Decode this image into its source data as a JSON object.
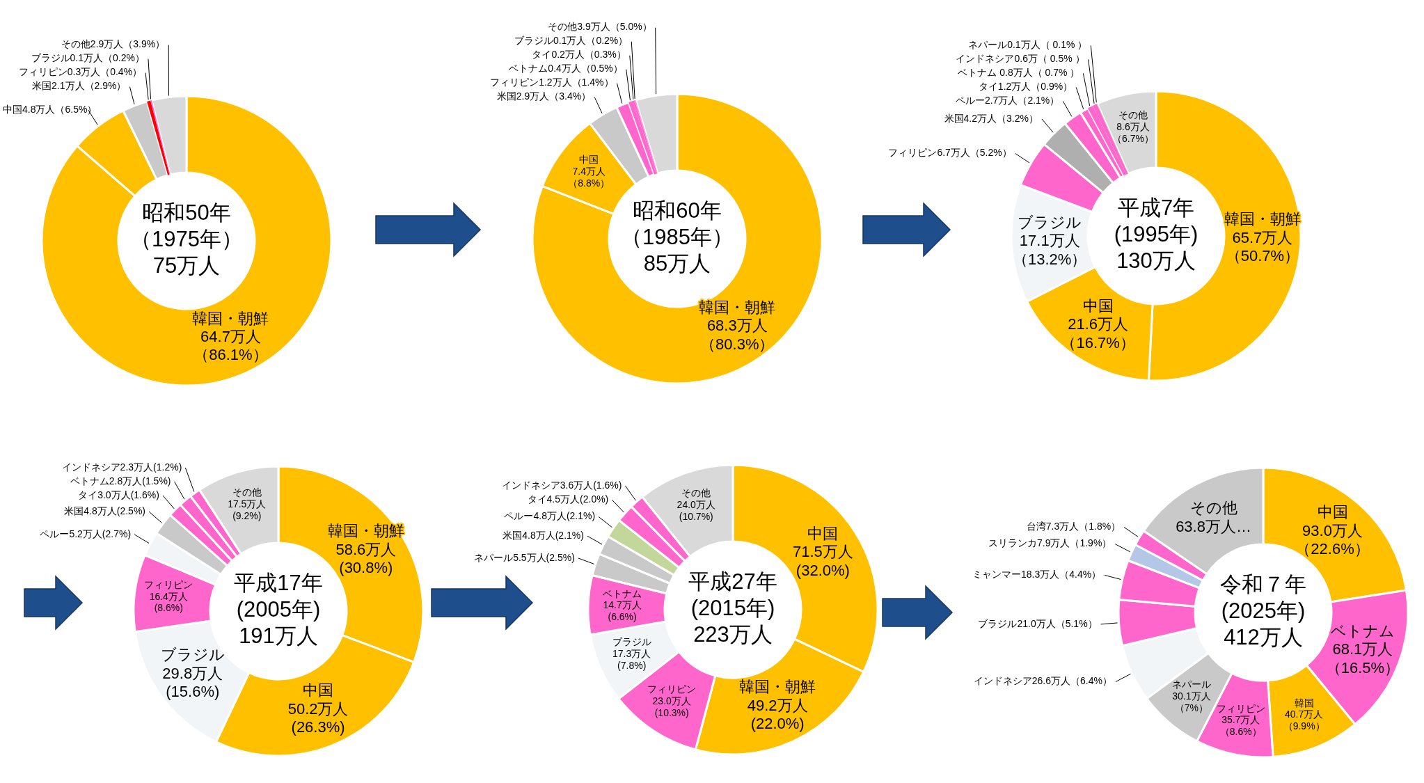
{
  "chart_data": [
    {
      "type": "donut",
      "title": "昭和50年",
      "subtitle": "（1975年）",
      "annotations": [
        "75万人"
      ],
      "categories": [
        "韓国・朝鮮",
        "中国",
        "米国",
        "フィリピン",
        "ブラジル",
        "その他"
      ],
      "values": [
        64.7,
        4.8,
        2.1,
        0.3,
        0.1,
        2.9
      ],
      "colors": [
        "#ffc000",
        "#ffc000",
        "#c9c9c9",
        "#ff0000",
        "#ff66cc",
        "#d9d9d9"
      ],
      "value_labels": [
        "64.7万人（86.1%）",
        "4.8万人（6.5%）",
        "2.1万人（2.9%）",
        "0.3万人（0.4%）",
        "0.1万人（0.2%）",
        "2.9万人（3.9%）"
      ]
    },
    {
      "type": "donut",
      "title": "昭和60年",
      "subtitle": "（1985年）",
      "annotations": [
        "85万人"
      ],
      "categories": [
        "韓国・朝鮮",
        "中国",
        "米国",
        "フィリピン",
        "ベトナム",
        "タイ",
        "ブラジル",
        "その他"
      ],
      "values": [
        68.3,
        7.4,
        2.9,
        1.2,
        0.4,
        0.2,
        0.1,
        3.9
      ],
      "colors": [
        "#ffc000",
        "#ffc000",
        "#c9c9c9",
        "#ff66cc",
        "#ff66cc",
        "#ff66cc",
        "#ff99dd",
        "#d9d9d9"
      ],
      "value_labels": [
        "68.3万人（80.3%）",
        "7.4万人（8.8%）",
        "2.9万人（3.4%）",
        "1.2万人（1.4%）",
        "0.4万人（0.5%）",
        "0.2万人（0.3%）",
        "0.1万人（0.2%）",
        "3.9万人（5.0%）"
      ]
    },
    {
      "type": "donut",
      "title": "平成7年",
      "subtitle": "(1995年)",
      "annotations": [
        "130万人"
      ],
      "categories": [
        "韓国・朝鮮",
        "中国",
        "ブラジル",
        "フィリピン",
        "米国",
        "ペルー",
        "タイ",
        "ベトナム",
        "インドネシア",
        "ネパール",
        "その他"
      ],
      "values": [
        65.7,
        21.6,
        17.1,
        6.7,
        4.2,
        2.7,
        1.2,
        0.8,
        0.6,
        0.1,
        8.6
      ],
      "colors": [
        "#ffc000",
        "#ffc000",
        "#f2f5f7",
        "#ff66cc",
        "#afafaf",
        "#ff66cc",
        "#ff66cc",
        "#ff66cc",
        "#ff66cc",
        "#bfbfbf",
        "#d9d9d9"
      ],
      "value_labels": [
        "65.7万人（50.7%）",
        "21.6万人（16.7%）",
        "17.1万人（13.2%）",
        "6.7万人（5.2%）",
        "4.2万人（3.2%）",
        "2.7万人（2.1%）",
        "1.2万人（0.9%）",
        " 0.8万人（ 0.7% ）",
        "0.6万（ 0.5% ）",
        "0.1万人（ 0.1% ）",
        "8.6万人（6.7%）"
      ]
    },
    {
      "type": "donut",
      "title": "平成17年",
      "subtitle": "(2005年)",
      "annotations": [
        "191万人"
      ],
      "categories": [
        "韓国・朝鮮",
        "中国",
        "ブラジル",
        "フィリピン",
        "ペルー",
        "米国",
        "タイ",
        "ベトナム",
        "インドネシア",
        "その他"
      ],
      "values": [
        58.6,
        50.2,
        29.8,
        16.4,
        5.2,
        4.8,
        3.0,
        2.8,
        2.3,
        17.5
      ],
      "colors": [
        "#ffc000",
        "#ffc000",
        "#f2f5f7",
        "#ff66cc",
        "#f2f5f7",
        "#c9c9c9",
        "#ff66cc",
        "#ff66cc",
        "#ff66cc",
        "#d9d9d9"
      ],
      "value_labels": [
        "58.6万人(30.8%)",
        "50.2万人(26.3%)",
        "29.8万人(15.6%)",
        "16.4万人(8.6%)",
        "5.2万人(2.7%)",
        "4.8万人(2.5%)",
        "3.0万人(1.6%)",
        "2.8万人(1.5%)",
        "2.3万人(1.2%)",
        "17.5万人(9.2%)"
      ]
    },
    {
      "type": "donut",
      "title": "平成27年",
      "subtitle": "(2015年)",
      "annotations": [
        "223万人"
      ],
      "categories": [
        "中国",
        "韓国・朝鮮",
        "フィリピン",
        "ブラジル",
        "ベトナム",
        "ネパール",
        "米国",
        "ペルー",
        "タイ",
        "インドネシア",
        "その他"
      ],
      "values": [
        71.5,
        49.2,
        23.0,
        17.3,
        14.7,
        5.5,
        4.8,
        4.8,
        4.5,
        3.6,
        24.0
      ],
      "colors": [
        "#ffc000",
        "#ffc000",
        "#ff66cc",
        "#f2f5f7",
        "#ff66cc",
        "#c9c9c9",
        "#c9c9c9",
        "#c4d79b",
        "#ff66cc",
        "#ff66cc",
        "#d9d9d9"
      ],
      "value_labels": [
        "71.5万人(32.0%)",
        "49.2万人(22.0%)",
        "23.0万人(10.3%)",
        "17.3万人(7.8%)",
        "14.7万人(6.6%)",
        "5.5万人(2.5%)",
        "4.8万人(2.1%)",
        "4.8万人(2.1%)",
        "4.5万人(2.0%)",
        "3.6万人(1.6%)",
        "24.0万人(10.7%)"
      ]
    },
    {
      "type": "donut",
      "title": "令和７年",
      "subtitle": "(2025年)",
      "annotations": [
        "412万人"
      ],
      "categories": [
        "中国",
        "ベトナム",
        "韓国",
        "フィリピン",
        "ネパール",
        "インドネシア",
        "ブラジル",
        "ミャンマー",
        "スリランカ",
        "台湾",
        "その他"
      ],
      "values": [
        93.0,
        68.1,
        40.7,
        35.7,
        30.1,
        26.6,
        21.0,
        18.3,
        7.9,
        7.3,
        63.8
      ],
      "colors": [
        "#ffc000",
        "#ff66cc",
        "#ffc000",
        "#ff66cc",
        "#c9c9c9",
        "#f2f5f7",
        "#ff66cc",
        "#ff66cc",
        "#b4c7e7",
        "#ff66cc",
        "#c9c9c9"
      ],
      "value_labels": [
        "93.0万人（22.6%）",
        "68.1万人（16.5%）",
        "40.7万人（9.9%）",
        "35.7万人（8.6%）",
        "30.1万人（7%）",
        "26.6万人（6.4%）",
        "21.0万人（5.1%）",
        "18.3万人（4.4%）",
        "7.9万人（1.9%）",
        "7.3万人（1.8%）",
        "63.8万人…"
      ]
    }
  ]
}
